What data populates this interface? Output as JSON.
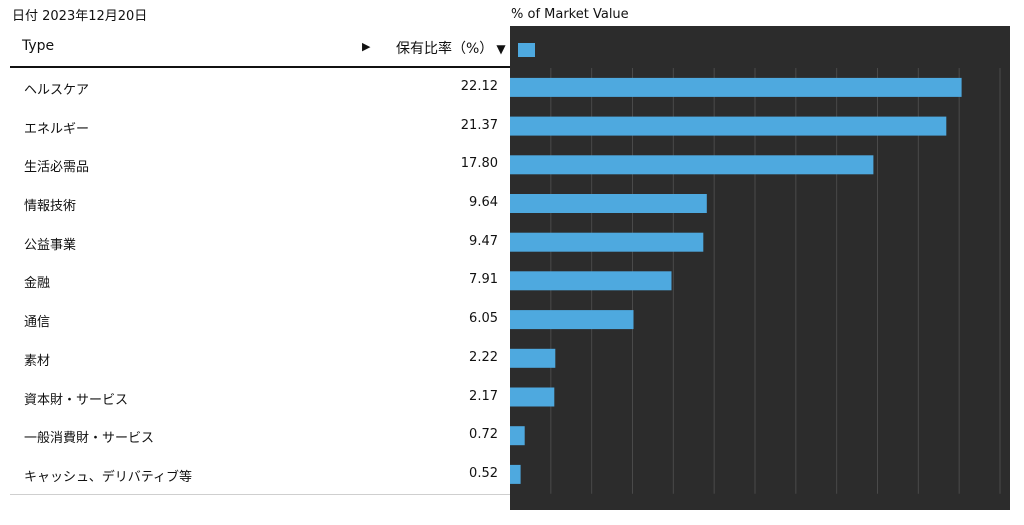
{
  "header": {
    "date_label": "日付 2023年12月20日",
    "chart_title": "% of Market Value"
  },
  "table": {
    "col_type": "Type",
    "col_pct": "保有比率（%）",
    "expand_icon": "triangle-right-icon",
    "sort_icon": "triangle-down-icon",
    "rows": [
      {
        "name": "ヘルスケア",
        "value": "22.12"
      },
      {
        "name": "エネルギー",
        "value": "21.37"
      },
      {
        "name": "生活必需品",
        "value": "17.80"
      },
      {
        "name": "情報技術",
        "value": "9.64"
      },
      {
        "name": "公益事業",
        "value": "9.47"
      },
      {
        "name": "金融",
        "value": "7.91"
      },
      {
        "name": "通信",
        "value": "6.05"
      },
      {
        "name": "素材",
        "value": "2.22"
      },
      {
        "name": "資本財・サービス",
        "value": "2.17"
      },
      {
        "name": "一般消費財・サービス",
        "value": "0.72"
      },
      {
        "name": "キャッシュ、デリバティブ等",
        "value": "0.52"
      }
    ]
  },
  "chart_data": {
    "type": "bar",
    "orientation": "horizontal",
    "title": "% of Market Value",
    "categories": [
      "ヘルスケア",
      "エネルギー",
      "生活必需品",
      "情報技術",
      "公益事業",
      "金融",
      "通信",
      "素材",
      "資本財・サービス",
      "一般消費財・サービス",
      "キャッシュ、デリバティブ等"
    ],
    "values": [
      22.12,
      21.37,
      17.8,
      9.64,
      9.47,
      7.91,
      6.05,
      2.22,
      2.17,
      0.72,
      0.52
    ],
    "xlim": [
      0,
      24
    ],
    "grid": true,
    "legend": "top-left",
    "colors": {
      "bar": "#4ea9df",
      "background": "#2c2c2c",
      "grid": "#4a4a4a"
    }
  }
}
